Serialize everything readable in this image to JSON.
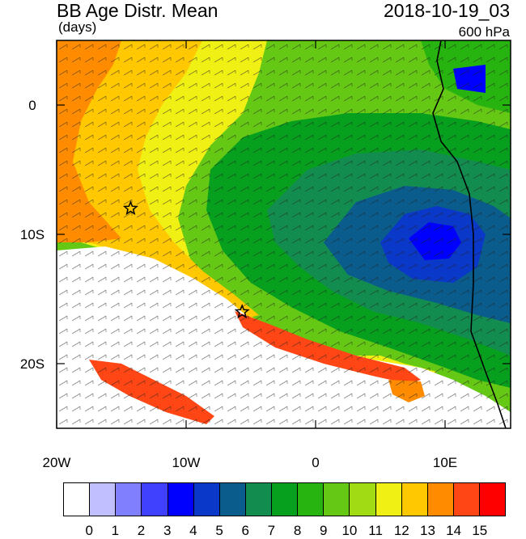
{
  "header": {
    "title": "BB Age Distr. Mean",
    "units": "(days)",
    "datetime": "2018-10-19_03",
    "level": "600 hPa"
  },
  "map": {
    "x_ticks": [
      "20W",
      "10W",
      "0",
      "10E"
    ],
    "y_ticks": [
      "0",
      "10S",
      "20S"
    ],
    "lon_range": [
      -20,
      15
    ],
    "lat_range": [
      -25,
      5
    ],
    "markers": [
      {
        "name": "star-1",
        "lon": -14.3,
        "lat": -8.0
      },
      {
        "name": "star-2",
        "lon": -5.7,
        "lat": -16.0
      }
    ]
  },
  "colorbar": {
    "labels": [
      "0",
      "1",
      "2",
      "3",
      "4",
      "5",
      "6",
      "7",
      "8",
      "9",
      "10",
      "11",
      "12",
      "13",
      "14",
      "15"
    ],
    "colors": [
      "#ffffff",
      "#c0c0ff",
      "#8080ff",
      "#4040ff",
      "#0000ff",
      "#0a38c8",
      "#0a5c8c",
      "#138c50",
      "#06a01e",
      "#28b410",
      "#64c814",
      "#a0dc14",
      "#f0f014",
      "#ffc800",
      "#ff8c00",
      "#ff4614",
      "#ff0000"
    ]
  }
}
